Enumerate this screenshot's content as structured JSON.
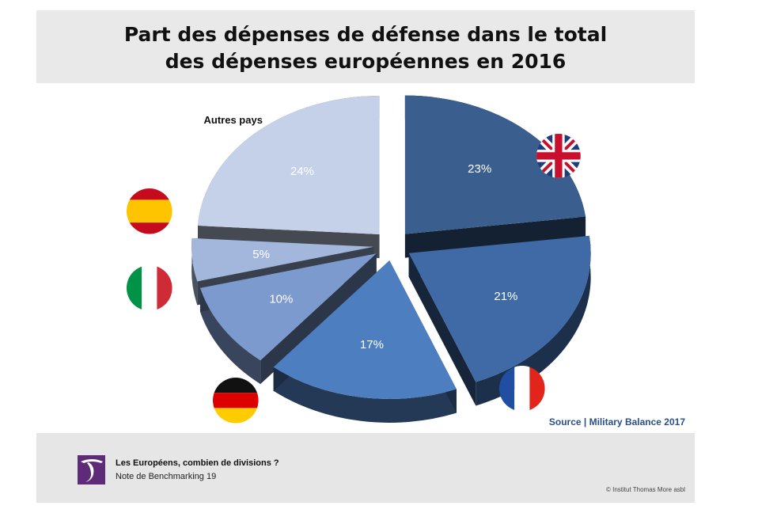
{
  "title": {
    "line1": "Part des dépenses de défense dans le total",
    "line2": "des dépenses européennes en 2016"
  },
  "source": "Source | Military Balance 2017",
  "footer": {
    "title": "Les Européens, combien de divisions ?",
    "subtitle": "Note de Benchmarking 19",
    "copyright": "© Institut Thomas More asbl"
  },
  "colors": {
    "uk": "#3a5f8f",
    "france": "#3f6aa6",
    "germany": "#4d7fc0",
    "italy": "#7c9acd",
    "spain": "#a3b6dc",
    "other": "#c5d1e8"
  },
  "chart_data": {
    "type": "pie",
    "style": "3d-exploded",
    "slices": [
      {
        "label": "Royaume-Uni",
        "value": 23,
        "display": "23%",
        "icon": "uk-flag-icon",
        "color": "#3a5f8f"
      },
      {
        "label": "France",
        "value": 21,
        "display": "21%",
        "icon": "france-flag-icon",
        "color": "#3f6aa6"
      },
      {
        "label": "Allemagne",
        "value": 17,
        "display": "17%",
        "icon": "germany-flag-icon",
        "color": "#4d7fc0"
      },
      {
        "label": "Italie",
        "value": 10,
        "display": "10%",
        "icon": "italy-flag-icon",
        "color": "#7c9acd"
      },
      {
        "label": "Espagne",
        "value": 5,
        "display": "5%",
        "icon": "spain-flag-icon",
        "color": "#a3b6dc"
      },
      {
        "label": "Autres pays",
        "value": 24,
        "display": "24%",
        "icon": "",
        "color": "#c5d1e8"
      }
    ]
  }
}
